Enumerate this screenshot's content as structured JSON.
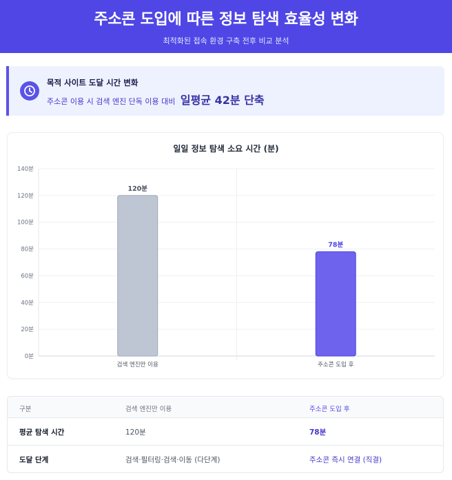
{
  "header": {
    "title": "주소콘 도입에 따른 정보 탐색 효율성 변화",
    "subtitle": "최적화된 접속 환경 구축 전후 비교 분석"
  },
  "callout": {
    "icon": "clock-icon",
    "title": "목적 사이트 도달 시간 변화",
    "description": "주소콘 이용 시 검색 엔진 단독 이용 대비",
    "highlight": "일평균 42분 단축"
  },
  "chart_data": {
    "type": "bar",
    "title": "일일 정보 탐색 소요 시간 (분)",
    "categories": [
      "검색 엔진만 이용",
      "주소콘 도입 후"
    ],
    "values": [
      120,
      78
    ],
    "data_labels": [
      "120분",
      "78분"
    ],
    "y_ticks": [
      "0분",
      "20분",
      "40분",
      "60분",
      "80분",
      "100분",
      "120분",
      "140분"
    ],
    "ylim": [
      0,
      140
    ],
    "colors": [
      "#bfc6d3",
      "#6d63ec"
    ],
    "label_colors": [
      "#4b5563",
      "#4f46e5"
    ],
    "grid": true
  },
  "table": {
    "headers": [
      "구분",
      "검색 엔진만 이용",
      "주소콘 도입 후"
    ],
    "rows": [
      [
        "평균 탐색 시간",
        "120분",
        "78분"
      ],
      [
        "도달 단계",
        "검색·필터링·검색·이동 (다단계)",
        "주소콘 즉시 연결 (직결)"
      ]
    ]
  }
}
